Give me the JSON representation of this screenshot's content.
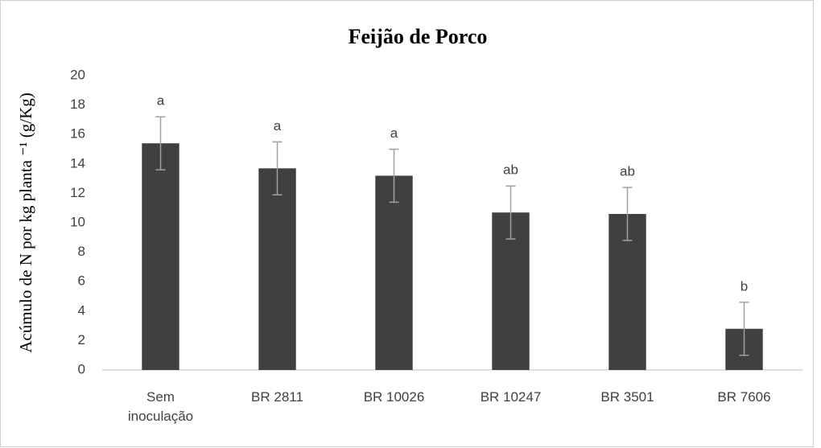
{
  "chart_data": {
    "type": "bar",
    "title": "Feijão de Porco",
    "y_label": "Acúmulo de N por kg planta ⁻¹ (g/Kg)",
    "categories": [
      "Sem inoculação",
      "BR 2811",
      "BR 10026",
      "BR 10247",
      "BR 3501",
      "BR 7606"
    ],
    "values": [
      15.4,
      13.7,
      13.2,
      10.7,
      10.6,
      2.8
    ],
    "errors": [
      1.8,
      1.8,
      1.8,
      1.8,
      1.8,
      1.8
    ],
    "annotations": [
      "a",
      "a",
      "a",
      "ab",
      "ab",
      "b"
    ],
    "color": "#404040",
    "error_color": "#a0a0a0",
    "ylim": [
      0,
      20
    ],
    "yticks": [
      0,
      2,
      4,
      6,
      8,
      10,
      12,
      14,
      16,
      18,
      20
    ],
    "grid": false
  }
}
